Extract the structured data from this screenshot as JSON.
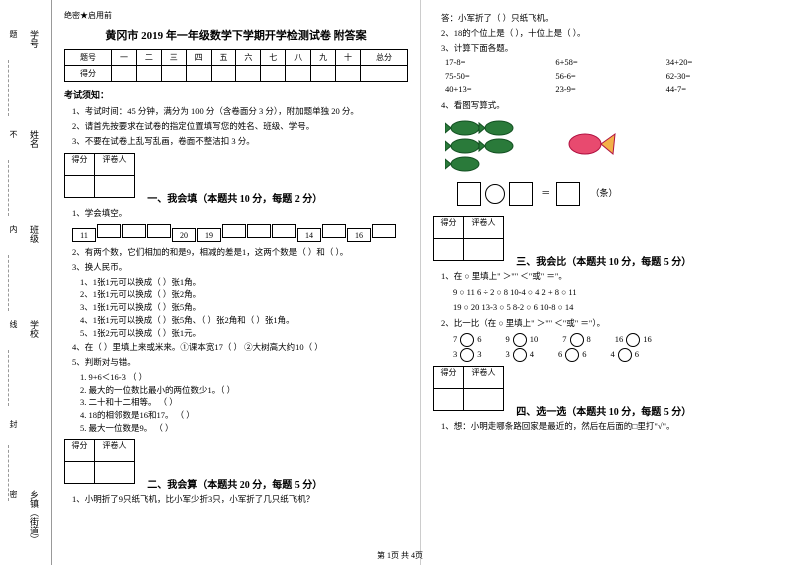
{
  "margin": {
    "labels": [
      "学号",
      "姓名",
      "班级",
      "学校",
      "乡镇（街道）"
    ],
    "marks": [
      "题",
      "不",
      "内",
      "线",
      "封",
      "密"
    ]
  },
  "header_tag": "绝密★启用前",
  "title": "黄冈市 2019 年一年级数学下学期开学检测试卷 附答案",
  "score_headers": [
    "题号",
    "一",
    "二",
    "三",
    "四",
    "五",
    "六",
    "七",
    "八",
    "九",
    "十",
    "总分"
  ],
  "score_row2": "得分",
  "notice_title": "考试须知：",
  "notices": [
    "1、考试时间：45 分钟，满分为 100 分（含卷面分 3 分），附加题单独 20 分。",
    "2、请首先按要求在试卷的指定位置填写您的姓名、班级、学号。",
    "3、不要在试卷上乱写乱画，卷面不整洁扣 3 分。"
  ],
  "score_box": {
    "c1": "得分",
    "c2": "评卷人"
  },
  "s1": {
    "title": "一、我会填（本题共 10 分，每题 2 分）",
    "q1": "1、学会填空。",
    "boxes": [
      "11",
      "",
      "",
      "",
      "20",
      "19",
      "",
      "",
      "",
      "14",
      "",
      "16",
      ""
    ],
    "q2": "2、有两个数，它们相加的和是9，相减的差是1，这两个数是（   ）和（   ）。",
    "q3": "3、换人民币。",
    "q3subs": [
      "1、1张1元可以换成（   ）张1角。",
      "2、1张1元可以换成（   ）张2角。",
      "3、1张1元可以换成（   ）张5角。",
      "4、1张1元可以换成（   ）张5角、（   ）张2角和（   ）张1角。",
      "5、1张2元可以换成（   ）张1元。"
    ],
    "q4": "4、在（   ）里填上来或米来。①课本宽17（   ）  ②大树高大约10（   ）",
    "q5": "5、判断对与错。",
    "q5subs": [
      "1. 9+6＜16-3               （   ）",
      "2. 最大的一位数比最小的两位数少1。（   ）",
      "3. 二十和十二相等。           （   ）",
      "4. 18的相邻数是16和17。        （   ）",
      "5. 最大一位数是9。            （   ）"
    ]
  },
  "s2": {
    "title": "二、我会算（本题共 20 分，每题 5 分）",
    "q1": "1、小明折了9只纸飞机，比小军少折3只，小军折了几只纸飞机？"
  },
  "right": {
    "ans": "答：小军折了（   ）只纸飞机。",
    "q2": "2、18的个位上是（   ），十位上是（   ）。",
    "q3": "3、计算下面各题。",
    "calcs": [
      [
        "17-8=",
        "6+58=",
        "34+20="
      ],
      [
        "75-50=",
        "56-6=",
        "62-30="
      ],
      [
        "40+13=",
        "23-9=",
        "44-7="
      ]
    ],
    "q4": "4、看图写算式。",
    "eq_suffix": "（条）"
  },
  "s3": {
    "title": "三、我会比（本题共 10 分，每题 5 分）",
    "q1": "1、在 ○ 里填上\" ＞\"\" ＜\"或\" ＝\"。",
    "rows1": [
      "9 ○ 11    6 ÷ 2 ○ 8    10-4 ○ 4    2 + 8 ○ 11",
      "19 ○ 20   13-3 ○ 5    8-2 ○ 6    10-8 ○ 14"
    ],
    "q2": "2、比一比（在 ○ 里填上\" ＞\"\" ＜\"或\" ＝\"）。",
    "rows2": [
      [
        "7",
        "6",
        "9",
        "10",
        "7",
        "8",
        "16",
        "16"
      ],
      [
        "3",
        "3",
        "3",
        "4",
        "6",
        "6",
        "4",
        "6"
      ]
    ]
  },
  "s4": {
    "title": "四、选一选（本题共 10 分，每题 5 分）",
    "q1": "1、想：小明走哪条路回家是最近的，然后在后面的□里打\"√\"。"
  },
  "footer": "第 1页 共 4页"
}
